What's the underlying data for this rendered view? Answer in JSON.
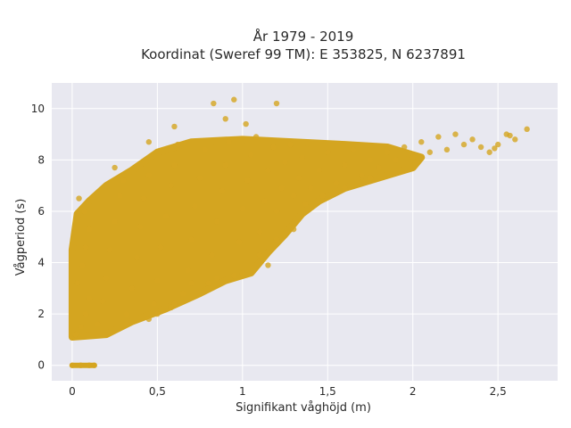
{
  "chart_data": {
    "type": "scatter",
    "title_line1": "År 1979 - 2019",
    "title_line2": "Koordinat (Sweref 99 TM): E 353825, N 6237891",
    "xlabel": "Signifikant våghöjd (m)",
    "ylabel": "Vågperiod (s)",
    "xlim": [
      -0.12,
      2.85
    ],
    "ylim": [
      -0.6,
      11.0
    ],
    "x_ticks": [
      {
        "value": 0,
        "label": "0"
      },
      {
        "value": 0.5,
        "label": "0,5"
      },
      {
        "value": 1,
        "label": "1"
      },
      {
        "value": 1.5,
        "label": "1,5"
      },
      {
        "value": 2,
        "label": "2"
      },
      {
        "value": 2.5,
        "label": "2,5"
      }
    ],
    "y_ticks": [
      {
        "value": 0,
        "label": "0"
      },
      {
        "value": 2,
        "label": "2"
      },
      {
        "value": 4,
        "label": "4"
      },
      {
        "value": 6,
        "label": "6"
      },
      {
        "value": 8,
        "label": "8"
      },
      {
        "value": 10,
        "label": "10"
      }
    ],
    "grid": true,
    "marker_color": "#d4a520",
    "plot_background": "#e8e8f0",
    "points": [
      {
        "x": 0.0,
        "y": 0.0
      },
      {
        "x": 0.05,
        "y": 0.0
      },
      {
        "x": 0.1,
        "y": 0.0
      },
      {
        "x": 0.13,
        "y": 0.0
      },
      {
        "x": 0.02,
        "y": 1.2
      },
      {
        "x": 0.05,
        "y": 1.5
      },
      {
        "x": 0.08,
        "y": 2.0
      },
      {
        "x": 0.1,
        "y": 2.6
      },
      {
        "x": 0.03,
        "y": 3.2
      },
      {
        "x": 0.06,
        "y": 3.9
      },
      {
        "x": 0.08,
        "y": 4.6
      },
      {
        "x": 0.1,
        "y": 5.3
      },
      {
        "x": 0.07,
        "y": 6.0
      },
      {
        "x": 0.04,
        "y": 6.5
      },
      {
        "x": 0.12,
        "y": 6.55
      },
      {
        "x": 0.15,
        "y": 1.6
      },
      {
        "x": 0.18,
        "y": 2.5
      },
      {
        "x": 0.2,
        "y": 3.4
      },
      {
        "x": 0.22,
        "y": 4.5
      },
      {
        "x": 0.25,
        "y": 5.6
      },
      {
        "x": 0.28,
        "y": 6.6
      },
      {
        "x": 0.3,
        "y": 7.2
      },
      {
        "x": 0.32,
        "y": 2.0
      },
      {
        "x": 0.35,
        "y": 3.0
      },
      {
        "x": 0.38,
        "y": 4.2
      },
      {
        "x": 0.4,
        "y": 5.4
      },
      {
        "x": 0.42,
        "y": 6.5
      },
      {
        "x": 0.45,
        "y": 7.4
      },
      {
        "x": 0.48,
        "y": 2.4
      },
      {
        "x": 0.5,
        "y": 3.3
      },
      {
        "x": 0.52,
        "y": 4.6
      },
      {
        "x": 0.55,
        "y": 5.8
      },
      {
        "x": 0.58,
        "y": 7.0
      },
      {
        "x": 0.6,
        "y": 7.8
      },
      {
        "x": 0.62,
        "y": 8.6
      },
      {
        "x": 0.65,
        "y": 2.8
      },
      {
        "x": 0.68,
        "y": 3.7
      },
      {
        "x": 0.7,
        "y": 4.9
      },
      {
        "x": 0.72,
        "y": 6.2
      },
      {
        "x": 0.75,
        "y": 7.3
      },
      {
        "x": 0.78,
        "y": 8.4
      },
      {
        "x": 0.8,
        "y": 3.2
      },
      {
        "x": 0.82,
        "y": 4.3
      },
      {
        "x": 0.85,
        "y": 5.6
      },
      {
        "x": 0.88,
        "y": 6.8
      },
      {
        "x": 0.9,
        "y": 7.8
      },
      {
        "x": 0.92,
        "y": 8.7
      },
      {
        "x": 0.95,
        "y": 3.5
      },
      {
        "x": 0.98,
        "y": 4.8
      },
      {
        "x": 1.0,
        "y": 6.1
      },
      {
        "x": 1.03,
        "y": 7.2
      },
      {
        "x": 1.05,
        "y": 8.2
      },
      {
        "x": 1.08,
        "y": 8.9
      },
      {
        "x": 1.1,
        "y": 5.2
      },
      {
        "x": 1.13,
        "y": 6.4
      },
      {
        "x": 1.15,
        "y": 7.6
      },
      {
        "x": 1.18,
        "y": 8.5
      },
      {
        "x": 1.2,
        "y": 6.0
      },
      {
        "x": 1.23,
        "y": 6.9
      },
      {
        "x": 1.25,
        "y": 7.9
      },
      {
        "x": 1.28,
        "y": 8.6
      },
      {
        "x": 1.3,
        "y": 6.6
      },
      {
        "x": 1.33,
        "y": 7.3
      },
      {
        "x": 1.35,
        "y": 8.1
      },
      {
        "x": 1.4,
        "y": 6.9
      },
      {
        "x": 1.45,
        "y": 7.6
      },
      {
        "x": 1.5,
        "y": 8.3
      },
      {
        "x": 1.55,
        "y": 7.1
      },
      {
        "x": 1.6,
        "y": 7.8
      },
      {
        "x": 1.65,
        "y": 8.4
      },
      {
        "x": 1.7,
        "y": 7.4
      },
      {
        "x": 1.75,
        "y": 8.0
      },
      {
        "x": 1.8,
        "y": 7.7
      },
      {
        "x": 1.85,
        "y": 8.3
      },
      {
        "x": 1.9,
        "y": 8.0
      },
      {
        "x": 1.95,
        "y": 8.5
      },
      {
        "x": 2.0,
        "y": 8.1
      },
      {
        "x": 2.05,
        "y": 8.7
      },
      {
        "x": 2.1,
        "y": 8.3
      },
      {
        "x": 2.15,
        "y": 8.9
      },
      {
        "x": 2.2,
        "y": 8.4
      },
      {
        "x": 2.25,
        "y": 9.0
      },
      {
        "x": 2.3,
        "y": 8.6
      },
      {
        "x": 2.35,
        "y": 8.8
      },
      {
        "x": 2.4,
        "y": 8.5
      },
      {
        "x": 2.45,
        "y": 8.3
      },
      {
        "x": 2.5,
        "y": 8.6
      },
      {
        "x": 2.55,
        "y": 9.0
      },
      {
        "x": 2.6,
        "y": 8.8
      },
      {
        "x": 2.67,
        "y": 9.2
      },
      {
        "x": 2.48,
        "y": 8.45
      },
      {
        "x": 2.57,
        "y": 8.95
      },
      {
        "x": 0.83,
        "y": 10.2
      },
      {
        "x": 0.95,
        "y": 10.35
      },
      {
        "x": 0.9,
        "y": 9.6
      },
      {
        "x": 1.2,
        "y": 10.2
      },
      {
        "x": 1.02,
        "y": 9.4
      },
      {
        "x": 0.6,
        "y": 9.3
      },
      {
        "x": 0.45,
        "y": 8.7
      },
      {
        "x": 0.25,
        "y": 7.7
      },
      {
        "x": 0.7,
        "y": 3.2
      },
      {
        "x": 0.85,
        "y": 3.4
      },
      {
        "x": 1.0,
        "y": 3.6
      },
      {
        "x": 1.1,
        "y": 4.3
      },
      {
        "x": 1.2,
        "y": 4.9
      },
      {
        "x": 1.3,
        "y": 5.3
      },
      {
        "x": 1.37,
        "y": 6.3
      },
      {
        "x": 1.47,
        "y": 6.6
      },
      {
        "x": 1.6,
        "y": 6.9
      },
      {
        "x": 1.75,
        "y": 7.3
      },
      {
        "x": 0.6,
        "y": 2.4
      },
      {
        "x": 0.45,
        "y": 1.8
      },
      {
        "x": 0.32,
        "y": 1.6
      },
      {
        "x": 0.5,
        "y": 2.0
      },
      {
        "x": 1.15,
        "y": 3.9
      },
      {
        "x": 0.58,
        "y": 2.25
      }
    ]
  }
}
